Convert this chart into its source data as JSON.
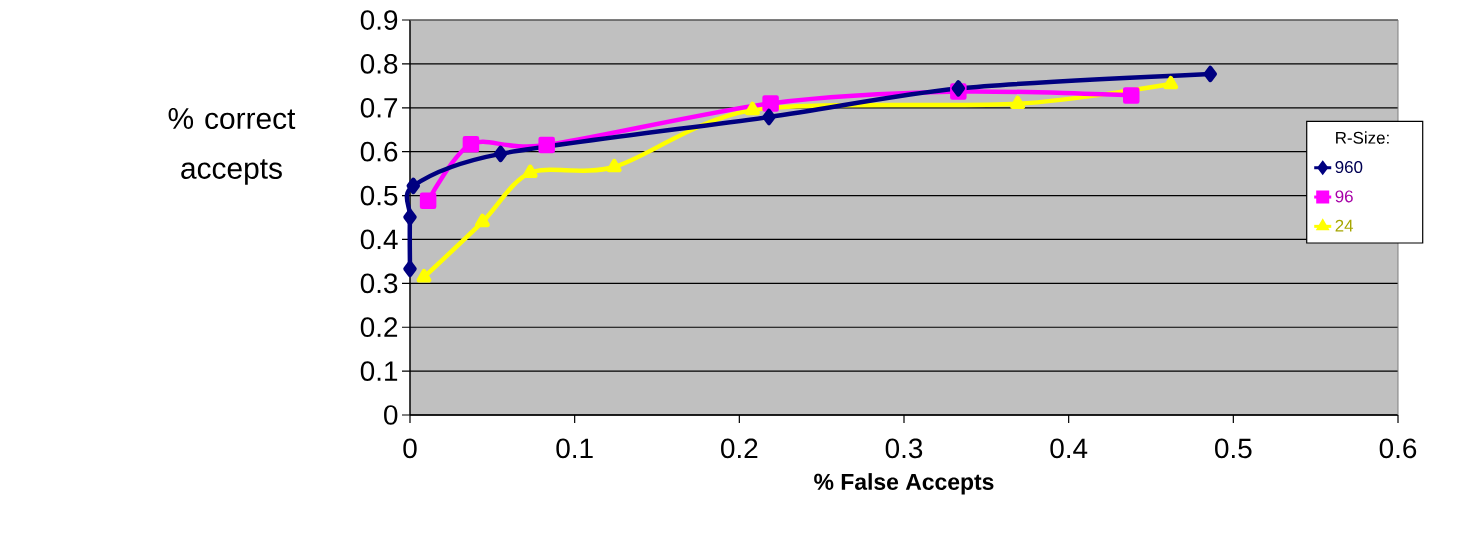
{
  "chart_data": {
    "type": "line",
    "xlabel": "% False Accepts",
    "ylabel": "% correct accepts",
    "legend_title": "R-Size:",
    "legend": "right",
    "grid": "y",
    "xlim": [
      0,
      0.6
    ],
    "ylim": [
      0,
      0.9
    ],
    "xticks": [
      0,
      0.1,
      0.2,
      0.3,
      0.4,
      0.5,
      0.6
    ],
    "yticks": [
      0,
      0.1,
      0.2,
      0.3,
      0.4,
      0.5,
      0.6,
      0.7,
      0.8,
      0.9
    ],
    "series": [
      {
        "name": "960",
        "color": "#000080",
        "marker": "diamond",
        "x": [
          0,
          0,
          0.002,
          0.055,
          0.218,
          0.333,
          0.486
        ],
        "values": [
          0.333,
          0.451,
          0.522,
          0.595,
          0.679,
          0.744,
          0.777
        ]
      },
      {
        "name": "96",
        "color": "#ff00ff",
        "marker": "square",
        "x": [
          0.011,
          0.037,
          0.083,
          0.219,
          0.333,
          0.438
        ],
        "values": [
          0.488,
          0.617,
          0.615,
          0.71,
          0.737,
          0.728
        ]
      },
      {
        "name": "24",
        "color": "#ffff00",
        "marker": "triangle",
        "x": [
          0.0085,
          0.044,
          0.073,
          0.124,
          0.208,
          0.369,
          0.462
        ],
        "values": [
          0.314,
          0.44,
          0.552,
          0.565,
          0.695,
          0.709,
          0.754
        ]
      }
    ]
  }
}
